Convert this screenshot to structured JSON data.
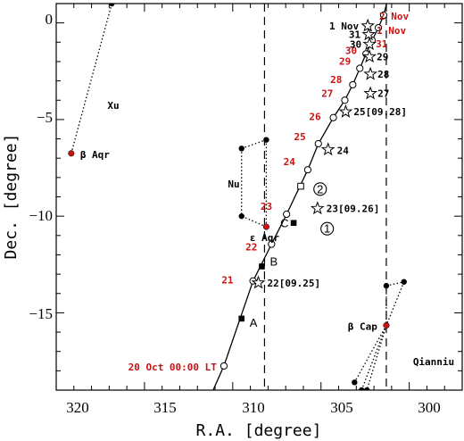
{
  "chart_data": {
    "type": "scatter",
    "xlabel": "R.A. [degree]",
    "ylabel": "Dec. [degree]",
    "xlim": [
      320,
      297
    ],
    "ylim": [
      -19,
      1
    ],
    "x_ticks": [
      "320",
      "315",
      "310",
      "305",
      "300"
    ],
    "x_tick_values": [
      320,
      315,
      310,
      305,
      300
    ],
    "y_ticks": [
      "0",
      "−5",
      "−10",
      "−15"
    ],
    "y_tick_values": [
      0,
      -5,
      -10,
      -15
    ],
    "x_minor_step": 1,
    "y_minor_step": 1,
    "grid": false,
    "vertical_dashed_lines": [
      308.2,
      301.3
    ],
    "path_points": [
      {
        "x": 310.5,
        "y": -17.75,
        "label": "20 Oct 00:00 LT"
      },
      {
        "x": 308.85,
        "y": -13.35,
        "label": "21"
      },
      {
        "x": 307.8,
        "y": -11.45,
        "label": "22"
      },
      {
        "x": 306.95,
        "y": -9.9,
        "label": "23"
      },
      {
        "x": 305.75,
        "y": -7.6,
        "label": "24"
      },
      {
        "x": 305.15,
        "y": -6.25,
        "label": "25"
      },
      {
        "x": 304.3,
        "y": -4.9,
        "label": "26"
      },
      {
        "x": 303.65,
        "y": -4.0,
        "label": "27"
      },
      {
        "x": 303.2,
        "y": -3.2,
        "label": "28"
      },
      {
        "x": 302.8,
        "y": -2.35,
        "label": "29"
      },
      {
        "x": 302.45,
        "y": -1.6,
        "label": "30"
      },
      {
        "x": 302.1,
        "y": -0.9,
        "label": "31"
      },
      {
        "x": 301.75,
        "y": -0.25,
        "label": "1 Nov"
      },
      {
        "x": 301.45,
        "y": 0.4,
        "label": "2 Nov"
      }
    ],
    "star_points": [
      {
        "x": 308.55,
        "y": -13.45,
        "label": "22[09.25]"
      },
      {
        "x": 305.2,
        "y": -9.6,
        "label": "23[09.26]"
      },
      {
        "x": 304.6,
        "y": -6.55,
        "label": "24"
      },
      {
        "x": 303.6,
        "y": -4.6,
        "label": "25[09.28]"
      },
      {
        "x": 302.2,
        "y": -3.65,
        "label": "27"
      },
      {
        "x": 302.2,
        "y": -2.65,
        "label": "28"
      },
      {
        "x": 302.25,
        "y": -1.75,
        "label": "29"
      },
      {
        "x": 302.25,
        "y": -1.1,
        "label": "30"
      },
      {
        "x": 302.3,
        "y": -0.6,
        "label": "31"
      },
      {
        "x": 302.35,
        "y": -0.15,
        "label": "1 Nov"
      }
    ],
    "square_points": [
      {
        "x": 309.5,
        "y": -15.3,
        "label": "A"
      },
      {
        "x": 308.35,
        "y": -12.6,
        "label": "B"
      },
      {
        "x": 306.55,
        "y": -10.35,
        "label": "C"
      }
    ],
    "open_square_points": [
      {
        "x": 306.15,
        "y": -8.45
      }
    ],
    "circled_numbers": [
      {
        "x": 304.65,
        "y": -10.65,
        "label": "1"
      },
      {
        "x": 305.05,
        "y": -8.6,
        "label": "2"
      }
    ],
    "stars": [
      {
        "x": 319.15,
        "y": -6.75,
        "label": "β Aqr"
      },
      {
        "x": 308.1,
        "y": -10.55,
        "label": "ε Aqr"
      },
      {
        "x": 301.3,
        "y": -15.65,
        "label": "β Cap"
      }
    ],
    "groups": [
      {
        "label": "Xu",
        "points": [
          {
            "x": 319.15,
            "y": -6.75
          },
          {
            "x": 316.85,
            "y": 1.0
          }
        ]
      },
      {
        "label": "Nu",
        "points": [
          {
            "x": 309.5,
            "y": -6.5
          },
          {
            "x": 308.1,
            "y": -6.05
          },
          {
            "x": 308.1,
            "y": -10.55
          },
          {
            "x": 309.5,
            "y": -10.0
          }
        ]
      },
      {
        "label": "Qianniu",
        "points": [
          {
            "x": 301.3,
            "y": -13.6
          },
          {
            "x": 300.3,
            "y": -13.4
          },
          {
            "x": 301.3,
            "y": -15.65
          },
          {
            "x": 303.1,
            "y": -18.6
          },
          {
            "x": 302.7,
            "y": -19.0
          },
          {
            "x": 302.4,
            "y": -19.0
          }
        ]
      }
    ]
  },
  "colors": {
    "red": "#cc1111",
    "black": "#000000"
  }
}
